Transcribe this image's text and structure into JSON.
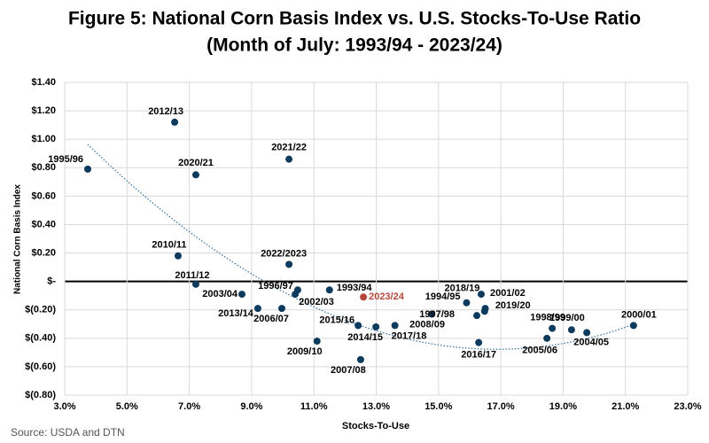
{
  "chart_data": {
    "type": "scatter",
    "title": "Figure 5: National Corn Basis Index vs. U.S. Stocks-To-Use Ratio",
    "subtitle": "(Month of July: 1993/94 - 2023/24)",
    "x_label": "Stocks-To-Use",
    "y_label": "National Corn Basis Index",
    "source": "Source: USDA and DTN",
    "point_labels": [
      "1995/96",
      "2012/13",
      "2020/21",
      "2021/22",
      "2010/11",
      "2022/2023",
      "2011/12",
      "2003/04",
      "2013/14",
      "2006/07",
      "1996/97",
      "2002/03",
      "1993/94",
      "2023/24",
      "2015/16",
      "2014/15",
      "2017/18",
      "2009/10",
      "2007/08",
      "2008/09",
      "2018/19",
      "1994/95",
      "1997/98",
      "2001/02",
      "2019/20",
      "2016/17",
      "1998/99",
      "2005/06",
      "1999/00",
      "2004/05",
      "2000/01"
    ],
    "x": [
      3.74,
      6.53,
      7.21,
      10.2,
      6.64,
      10.2,
      7.21,
      8.69,
      9.2,
      9.97,
      10.48,
      10.4,
      11.5,
      12.59,
      12.42,
      12.99,
      13.6,
      11.1,
      12.5,
      14.78,
      15.9,
      16.5,
      16.23,
      16.37,
      16.48,
      16.29,
      18.65,
      18.48,
      19.27,
      19.76,
      21.26
    ],
    "values": [
      0.79,
      1.12,
      0.75,
      0.86,
      0.18,
      0.12,
      -0.02,
      -0.09,
      -0.19,
      -0.19,
      -0.06,
      -0.09,
      -0.06,
      -0.11,
      -0.31,
      -0.32,
      -0.31,
      -0.42,
      -0.55,
      -0.23,
      -0.15,
      -0.19,
      -0.24,
      -0.09,
      -0.21,
      -0.43,
      -0.33,
      -0.4,
      -0.34,
      -0.36,
      -0.31
    ],
    "colors": [
      "#0d3b5e",
      "#0d3b5e",
      "#0d3b5e",
      "#0d3b5e",
      "#0d3b5e",
      "#0d3b5e",
      "#0d3b5e",
      "#0d3b5e",
      "#0d3b5e",
      "#0d3b5e",
      "#0d3b5e",
      "#0d3b5e",
      "#0d3b5e",
      "#b5473a",
      "#0d3b5e",
      "#0d3b5e",
      "#0d3b5e",
      "#0d3b5e",
      "#0d3b5e",
      "#0d3b5e",
      "#0d3b5e",
      "#0d3b5e",
      "#0d3b5e",
      "#0d3b5e",
      "#0d3b5e",
      "#0d3b5e",
      "#0d3b5e",
      "#0d3b5e",
      "#0d3b5e",
      "#0d3b5e",
      "#0d3b5e"
    ],
    "xlim": [
      3,
      23
    ],
    "xticks": [
      {
        "value": 3,
        "label": "3.0%"
      },
      {
        "value": 5,
        "label": "5.0%"
      },
      {
        "value": 7,
        "label": "7.0%"
      },
      {
        "value": 9,
        "label": "9.0%"
      },
      {
        "value": 11,
        "label": "11.0%"
      },
      {
        "value": 13,
        "label": "13.0%"
      },
      {
        "value": 15,
        "label": "15.0%"
      },
      {
        "value": 17,
        "label": "17.0%"
      },
      {
        "value": 19,
        "label": "19.0%"
      },
      {
        "value": 21,
        "label": "21.0%"
      },
      {
        "value": 23,
        "label": "23.0%"
      }
    ],
    "ylim": [
      -0.8,
      1.4
    ],
    "yticks": [
      {
        "value": 1.4,
        "label": "$1.40"
      },
      {
        "value": 1.2,
        "label": "$1.20"
      },
      {
        "value": 1.0,
        "label": "$1.00"
      },
      {
        "value": 0.8,
        "label": "$0.80"
      },
      {
        "value": 0.6,
        "label": "$0.60"
      },
      {
        "value": 0.4,
        "label": "$0.40"
      },
      {
        "value": 0.2,
        "label": "$0.20"
      },
      {
        "value": 0,
        "label": "$-"
      },
      {
        "value": -0.2,
        "label": "$(0.20)"
      },
      {
        "value": -0.4,
        "label": "$(0.40)"
      },
      {
        "value": -0.6,
        "label": "$(0.60)"
      },
      {
        "value": -0.8,
        "label": "$(0.80)"
      }
    ],
    "grid": true
  }
}
